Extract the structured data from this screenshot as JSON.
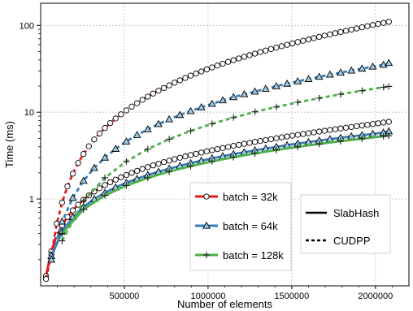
{
  "chart_data": {
    "type": "line",
    "title": "",
    "xlabel": "Number of elements",
    "ylabel": "Time (ms)",
    "xlim": [
      0,
      2200000
    ],
    "ylim": [
      0.1,
      180
    ],
    "y_scale": "log",
    "grid": true,
    "x_ticks": [
      {
        "value": 500000,
        "label": "500000"
      },
      {
        "value": 1000000,
        "label": "1000000"
      },
      {
        "value": 1500000,
        "label": "1500000"
      },
      {
        "value": 2000000,
        "label": "2000000"
      }
    ],
    "y_ticks": [
      {
        "value": 1,
        "label": "1"
      },
      {
        "value": 10,
        "label": "10"
      },
      {
        "value": 100,
        "label": "100"
      }
    ],
    "x": [
      32000,
      64000,
      96000,
      128000,
      160000,
      192000,
      224000,
      256000,
      288000,
      320000,
      352000,
      384000,
      416000,
      448000,
      480000,
      512000,
      544000,
      576000,
      608000,
      640000,
      672000,
      704000,
      736000,
      768000,
      800000,
      832000,
      864000,
      896000,
      928000,
      960000,
      992000,
      1024000,
      1056000,
      1088000,
      1120000,
      1152000,
      1184000,
      1216000,
      1248000,
      1280000,
      1312000,
      1344000,
      1376000,
      1408000,
      1440000,
      1472000,
      1504000,
      1536000,
      1568000,
      1600000,
      1632000,
      1664000,
      1696000,
      1728000,
      1760000,
      1792000,
      1824000,
      1856000,
      1888000,
      1920000,
      1952000,
      1984000,
      2016000,
      2048000,
      2080000
    ],
    "series": [
      {
        "name": "batch = 32k",
        "library": "SlabHash",
        "color": "#e41a1c",
        "marker": "circle",
        "line": "solid",
        "values": [
          0.13,
          0.25,
          0.38,
          0.5,
          0.62,
          0.74,
          0.86,
          0.98,
          1.1,
          1.22,
          1.33,
          1.45,
          1.56,
          1.67,
          1.78,
          1.89,
          2.0,
          2.11,
          2.22,
          2.33,
          2.44,
          2.55,
          2.66,
          2.77,
          2.88,
          2.99,
          3.1,
          3.21,
          3.32,
          3.43,
          3.54,
          3.65,
          3.76,
          3.87,
          3.98,
          4.1,
          4.21,
          4.32,
          4.43,
          4.55,
          4.66,
          4.78,
          4.89,
          5.01,
          5.13,
          5.25,
          5.37,
          5.49,
          5.61,
          5.73,
          5.86,
          5.98,
          6.11,
          6.24,
          6.37,
          6.5,
          6.63,
          6.76,
          6.9,
          7.03,
          7.17,
          7.31,
          7.45,
          7.6,
          7.74
        ]
      },
      {
        "name": "batch = 32k",
        "library": "CUDPP",
        "color": "#e41a1c",
        "marker": "circle",
        "line": "dashed",
        "values": [
          0.12,
          0.23,
          0.52,
          0.91,
          1.4,
          1.96,
          2.6,
          3.3,
          4.05,
          4.85,
          5.7,
          6.58,
          7.5,
          8.46,
          9.45,
          10.5,
          11.6,
          12.7,
          13.9,
          15.1,
          16.4,
          17.7,
          19.0,
          20.4,
          21.9,
          23.3,
          24.8,
          26.4,
          27.9,
          29.5,
          31.1,
          32.8,
          34.5,
          36.2,
          38.0,
          39.8,
          41.6,
          43.5,
          45.4,
          47.3,
          49.3,
          51.3,
          53.4,
          55.5,
          57.6,
          59.8,
          62.0,
          64.3,
          66.6,
          68.9,
          71.3,
          73.8,
          76.3,
          78.8,
          81.4,
          84.0,
          86.7,
          89.4,
          92.2,
          95.1,
          98.0,
          101,
          104,
          107,
          110
        ]
      },
      {
        "name": "batch = 64k",
        "library": "SlabHash",
        "color": "#377eb8",
        "marker": "triangle",
        "line": "solid",
        "values": [
          null,
          0.22,
          null,
          0.42,
          null,
          0.62,
          null,
          0.81,
          null,
          1.0,
          null,
          1.18,
          null,
          1.36,
          null,
          1.54,
          null,
          1.71,
          null,
          1.89,
          null,
          2.06,
          null,
          2.24,
          null,
          2.41,
          null,
          2.59,
          null,
          2.76,
          null,
          2.94,
          null,
          3.11,
          null,
          3.29,
          null,
          3.46,
          null,
          3.64,
          null,
          3.81,
          null,
          3.99,
          null,
          4.17,
          null,
          4.35,
          null,
          4.53,
          null,
          4.71,
          null,
          4.89,
          null,
          5.07,
          null,
          5.26,
          null,
          5.44,
          null,
          5.63,
          null,
          5.82,
          6.01
        ]
      },
      {
        "name": "batch = 64k",
        "library": "CUDPP",
        "color": "#377eb8",
        "marker": "triangle",
        "line": "dashed",
        "values": [
          null,
          0.2,
          null,
          0.55,
          null,
          1.03,
          null,
          1.62,
          null,
          2.28,
          null,
          3.0,
          null,
          3.78,
          null,
          4.6,
          null,
          5.46,
          null,
          6.36,
          null,
          7.3,
          null,
          8.28,
          null,
          9.29,
          null,
          10.3,
          null,
          11.4,
          null,
          12.5,
          null,
          13.7,
          null,
          14.9,
          null,
          16.1,
          null,
          17.3,
          null,
          18.6,
          null,
          19.9,
          null,
          21.3,
          null,
          22.7,
          null,
          24.1,
          null,
          25.6,
          null,
          27.1,
          null,
          28.6,
          null,
          30.2,
          null,
          31.8,
          null,
          33.5,
          null,
          35.2,
          36.9
        ]
      },
      {
        "name": "batch = 128k",
        "library": "SlabHash",
        "color": "#4daf4a",
        "marker": "plus",
        "line": "solid",
        "values": [
          null,
          null,
          null,
          0.4,
          null,
          null,
          null,
          0.76,
          null,
          null,
          null,
          1.1,
          null,
          null,
          null,
          1.43,
          null,
          null,
          null,
          1.75,
          null,
          null,
          null,
          2.07,
          null,
          null,
          null,
          2.39,
          null,
          null,
          null,
          2.71,
          null,
          null,
          null,
          3.03,
          null,
          null,
          null,
          3.35,
          null,
          null,
          null,
          3.67,
          null,
          null,
          null,
          3.99,
          null,
          null,
          null,
          4.31,
          null,
          null,
          null,
          4.63,
          null,
          null,
          null,
          4.95,
          null,
          null,
          null,
          5.28,
          5.36
        ]
      },
      {
        "name": "batch = 128k",
        "library": "CUDPP",
        "color": "#4daf4a",
        "marker": "plus",
        "line": "dashed",
        "values": [
          null,
          null,
          null,
          0.33,
          null,
          null,
          null,
          0.95,
          null,
          null,
          null,
          1.76,
          null,
          null,
          null,
          2.71,
          null,
          null,
          null,
          3.76,
          null,
          null,
          null,
          4.89,
          null,
          null,
          null,
          6.09,
          null,
          null,
          null,
          7.36,
          null,
          null,
          null,
          8.68,
          null,
          null,
          null,
          10.1,
          null,
          null,
          null,
          11.5,
          null,
          null,
          null,
          13.0,
          null,
          null,
          null,
          14.5,
          null,
          null,
          null,
          16.1,
          null,
          null,
          null,
          17.7,
          null,
          null,
          null,
          19.4,
          19.8
        ]
      }
    ],
    "legend_batches": [
      {
        "label": "batch = 32k",
        "color": "#e41a1c",
        "marker": "circle"
      },
      {
        "label": "batch = 64k",
        "color": "#377eb8",
        "marker": "triangle"
      },
      {
        "label": "batch = 128k",
        "color": "#4daf4a",
        "marker": "plus"
      }
    ],
    "legend_styles": [
      {
        "label": "SlabHash",
        "line": "solid"
      },
      {
        "label": "CUDPP",
        "line": "dashed"
      }
    ],
    "legend_placement": "bottom-right"
  }
}
